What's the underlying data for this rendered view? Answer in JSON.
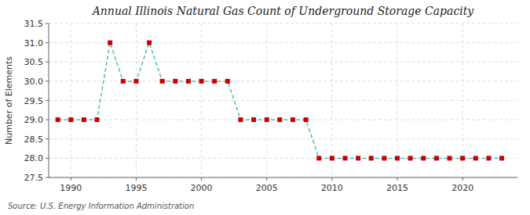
{
  "chart_data": {
    "type": "line",
    "title": "Annual Illinois Natural Gas Count of Underground Storage Capacity",
    "y_label": "Number of Elements",
    "annotations": [
      "Source: U.S. Energy Information Administration"
    ],
    "x": [
      1989,
      1990,
      1991,
      1992,
      1993,
      1994,
      1995,
      1996,
      1997,
      1998,
      1999,
      2000,
      2001,
      2002,
      2003,
      2004,
      2005,
      2006,
      2007,
      2008,
      2009,
      2010,
      2011,
      2012,
      2013,
      2014,
      2015,
      2016,
      2017,
      2018,
      2019,
      2020,
      2021,
      2022,
      2023
    ],
    "series": [
      {
        "type": "line",
        "color": "#55bbbb",
        "line_style": "dashed",
        "values": [
          29,
          29,
          29,
          29,
          31,
          30,
          30,
          31,
          30,
          30,
          30,
          30,
          30,
          30,
          29,
          29,
          29,
          29,
          29,
          29,
          28,
          28,
          28,
          28,
          28,
          28,
          28,
          28,
          28,
          28,
          28,
          28,
          28,
          28,
          28
        ]
      },
      {
        "type": "scatter",
        "color": "#cc0000",
        "marker": "square",
        "values": [
          29,
          29,
          29,
          29,
          31,
          30,
          30,
          31,
          30,
          30,
          30,
          30,
          30,
          30,
          29,
          29,
          29,
          29,
          29,
          29,
          28,
          28,
          28,
          28,
          28,
          28,
          28,
          28,
          28,
          28,
          28,
          28,
          28,
          28,
          28
        ]
      }
    ],
    "xlim": [
      1988.3,
      2024.2
    ],
    "xticks": [
      1990,
      1995,
      2000,
      2005,
      2010,
      2015,
      2020
    ],
    "ylim": [
      27.5,
      31.5
    ],
    "yticks": [
      27.5,
      {
        "value": 28,
        "label": "28.0"
      },
      28.5,
      {
        "value": 29,
        "label": "29.0"
      },
      29.5,
      {
        "value": 30,
        "label": "30.0"
      },
      30.5,
      {
        "value": 31,
        "label": "31.0"
      },
      31.5
    ],
    "grid": true
  }
}
